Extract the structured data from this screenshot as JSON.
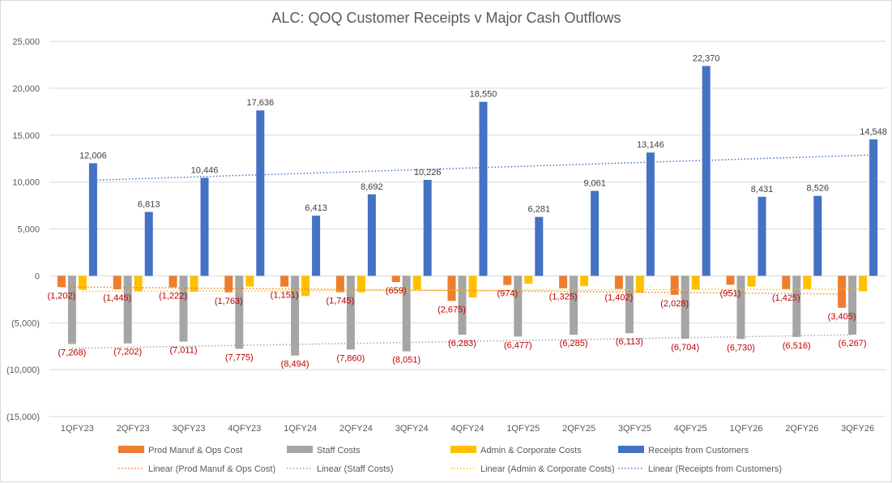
{
  "chart_data": {
    "type": "bar",
    "title": "ALC: QOQ Customer Receipts v Major Cash Outflows",
    "xlabel": "",
    "ylabel": "",
    "ylim": [
      -15000,
      25000
    ],
    "yticks": [
      25000,
      20000,
      15000,
      10000,
      5000,
      0,
      -5000,
      -10000,
      -15000
    ],
    "ytick_labels": [
      "25,000",
      "20,000",
      "15,000",
      "10,000",
      "5,000",
      "0",
      "(5,000)",
      "(10,000)",
      "(15,000)"
    ],
    "grid": true,
    "legend_position": "bottom",
    "categories": [
      "1QFY23",
      "2QFY23",
      "3QFY23",
      "4QFY23",
      "1QFY24",
      "2QFY24",
      "3QFY24",
      "4QFY24",
      "1QFY25",
      "2QFY25",
      "3QFY25",
      "4QFY25",
      "1QFY26",
      "2QFY26",
      "3QFY26"
    ],
    "series": [
      {
        "name": "Prod Manuf & Ops Cost",
        "color": "#ed7d31",
        "values": [
          -1202,
          -1445,
          -1222,
          -1763,
          -1151,
          -1745,
          -659,
          -2675,
          -974,
          -1325,
          -1402,
          -2028,
          -951,
          -1425,
          -3405
        ],
        "labels": [
          "(1,202)",
          "(1,445)",
          "(1,222)",
          "(1,763)",
          "(1,151)",
          "(1,745)",
          "(659)",
          "(2,675)",
          "(974)",
          "(1,325)",
          "(1,402)",
          "(2,028)",
          "(951)",
          "(1,425)",
          "(3,405)"
        ]
      },
      {
        "name": "Staff Costs",
        "color": "#a5a5a5",
        "values": [
          -7268,
          -7202,
          -7011,
          -7775,
          -8494,
          -7860,
          -8051,
          -6283,
          -6477,
          -6285,
          -6113,
          -6704,
          -6730,
          -6516,
          -6267
        ],
        "labels": [
          "(7,268)",
          "(7,202)",
          "(7,011)",
          "(7,775)",
          "(8,494)",
          "(7,860)",
          "(8,051)",
          "(6,283)",
          "(6,477)",
          "(6,285)",
          "(6,113)",
          "(6,704)",
          "(6,730)",
          "(6,516)",
          "(6,267)"
        ]
      },
      {
        "name": "Admin & Corporate Costs",
        "color": "#ffc000",
        "values": [
          -1500,
          -1650,
          -1700,
          -1150,
          -2150,
          -1750,
          -1450,
          -2300,
          -850,
          -1100,
          -1800,
          -1450,
          -1150,
          -1400,
          -1650
        ],
        "labels": []
      },
      {
        "name": "Receipts from Customers",
        "color": "#4472c4",
        "values": [
          12006,
          6813,
          10446,
          17636,
          6413,
          8692,
          10226,
          18550,
          6281,
          9061,
          13146,
          22370,
          8431,
          8526,
          14548
        ],
        "labels": [
          "12,006",
          "6,813",
          "10,446",
          "17,636",
          "6,413",
          "8,692",
          "10,226",
          "18,550",
          "6,281",
          "9,061",
          "13,146",
          "22,370",
          "8,431",
          "8,526",
          "14,548"
        ]
      }
    ],
    "trendlines": [
      {
        "name": "Linear (Prod Manuf & Ops Cost)",
        "series": "Prod Manuf & Ops Cost",
        "color": "#ed7d31"
      },
      {
        "name": "Linear (Staff Costs)",
        "series": "Staff Costs",
        "color": "#a5a5a5"
      },
      {
        "name": "Linear (Admin & Corporate Costs)",
        "series": "Admin & Corporate Costs",
        "color": "#ffc000"
      },
      {
        "name": "Linear (Receipts from Customers)",
        "series": "Receipts from Customers",
        "color": "#4472c4"
      }
    ],
    "label_color_negative": "#c00000",
    "label_color_positive": "#404040",
    "gridline_color": "#d9d9d9",
    "text_color": "#595959"
  }
}
